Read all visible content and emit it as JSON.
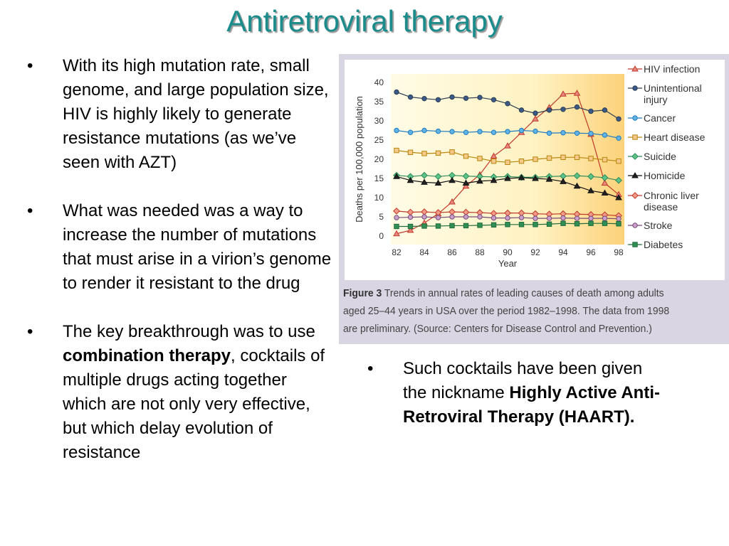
{
  "slide": {
    "title": "Antiretroviral therapy",
    "bullets": [
      {
        "parts": [
          {
            "text": "With its high mutation rate, small genome, and large population size, HIV is highly likely to generate resistance mutations (as we’ve seen with AZT)",
            "bold": false
          }
        ]
      },
      {
        "parts": [
          {
            "text": "What was needed was a way to increase the number of mutations that must arise in a virion’s genome to render it resistant to the drug",
            "bold": false
          }
        ]
      },
      {
        "parts": [
          {
            "text": "The key breakthrough was to use ",
            "bold": false
          },
          {
            "text": "combination therapy",
            "bold": true
          },
          {
            "text": ", cocktails of multiple drugs acting together which are not only very effective, but which delay evolution of resistance",
            "bold": false
          }
        ]
      }
    ],
    "right_bullets": [
      {
        "parts": [
          {
            "text": "Such cocktails have been given the nickname ",
            "bold": false
          },
          {
            "text": "Highly Active Anti-Retroviral Therapy (HAART).",
            "bold": true
          }
        ]
      }
    ],
    "bullet_symbol": "•"
  },
  "figure": {
    "caption_label": "Figure 3",
    "caption_text": " Trends in annual rates of leading causes of death among adults aged 25–44 years in USA over the period 1982–1998. The data from 1998 are preliminary. (Source: Centers for Disease Control and Prevention.)"
  },
  "chart_data": {
    "type": "line",
    "xlabel": "Year",
    "ylabel": "Deaths per 100,000 population",
    "xlim": [
      82,
      98
    ],
    "ylim": [
      0,
      40
    ],
    "xticks": [
      82,
      84,
      86,
      88,
      90,
      92,
      94,
      96,
      98
    ],
    "yticks": [
      0,
      5,
      10,
      15,
      20,
      25,
      30,
      35,
      40
    ],
    "x": [
      82,
      83,
      84,
      85,
      86,
      87,
      88,
      89,
      90,
      91,
      92,
      93,
      94,
      95,
      96,
      97,
      98
    ],
    "legend_position": "right",
    "background_gradient": {
      "from": "#fffbe6",
      "to": "#fcd27a"
    },
    "series": [
      {
        "name": "HIV infection",
        "color": "#c0392b",
        "fill": "#e8877e",
        "marker": "triangle",
        "values": [
          0.6,
          1.5,
          3.4,
          5.8,
          8.9,
          13.0,
          16.0,
          20.8,
          23.5,
          27.0,
          30.5,
          33.5,
          37.0,
          37.2,
          26.5,
          13.8,
          10.8
        ]
      },
      {
        "name": "Unintentional injury",
        "label_lines": [
          "Unintentional",
          "injury"
        ],
        "color": "#2c3e50",
        "fill": "#3b5a8a",
        "marker": "circle",
        "values": [
          37.5,
          36.2,
          35.8,
          35.5,
          36.2,
          35.9,
          36.1,
          35.5,
          34.5,
          32.8,
          32.0,
          32.8,
          33.0,
          33.6,
          32.5,
          32.8,
          30.5
        ]
      },
      {
        "name": "Cancer",
        "color": "#1f7bbf",
        "fill": "#5fb3e5",
        "marker": "circle",
        "values": [
          27.5,
          27.0,
          27.5,
          27.3,
          27.2,
          27.0,
          27.2,
          27.0,
          27.2,
          27.5,
          27.3,
          26.8,
          26.9,
          26.8,
          26.7,
          26.3,
          25.5
        ]
      },
      {
        "name": "Heart disease",
        "color": "#b8860b",
        "fill": "#f4c98a",
        "marker": "square",
        "values": [
          22.3,
          21.8,
          21.5,
          21.6,
          21.9,
          20.8,
          20.2,
          19.5,
          19.2,
          19.5,
          20.0,
          20.3,
          20.5,
          20.5,
          20.2,
          19.9,
          19.5
        ]
      },
      {
        "name": "Suicide",
        "color": "#2e8b57",
        "fill": "#5cc48a",
        "marker": "diamond",
        "values": [
          15.8,
          15.5,
          15.8,
          15.5,
          15.8,
          15.6,
          15.5,
          15.4,
          15.5,
          15.3,
          15.3,
          15.5,
          15.6,
          15.7,
          15.5,
          15.2,
          14.5
        ]
      },
      {
        "name": "Homicide",
        "color": "#111111",
        "fill": "#222222",
        "marker": "triangle",
        "values": [
          15.5,
          14.5,
          14.0,
          13.8,
          14.5,
          13.8,
          14.3,
          14.5,
          15.0,
          15.2,
          15.0,
          14.8,
          14.2,
          13.0,
          11.8,
          11.2,
          10.0
        ]
      },
      {
        "name": "Chronic liver disease",
        "label_lines": [
          "Chronic liver",
          "disease"
        ],
        "color": "#c0392b",
        "fill": "#f19a86",
        "marker": "diamond",
        "values": [
          6.5,
          6.2,
          6.3,
          6.1,
          6.3,
          6.2,
          6.1,
          5.9,
          6.0,
          6.0,
          5.8,
          5.7,
          5.8,
          5.7,
          5.6,
          5.5,
          5.3
        ]
      },
      {
        "name": "Stroke",
        "color": "#7a4a7a",
        "fill": "#c9a0c9",
        "marker": "circle",
        "values": [
          4.8,
          4.9,
          5.0,
          4.8,
          5.0,
          5.0,
          5.0,
          4.7,
          4.7,
          4.8,
          4.6,
          4.6,
          4.7,
          4.6,
          4.6,
          4.6,
          4.5
        ]
      },
      {
        "name": "Diabetes",
        "color": "#1e6b3a",
        "fill": "#2f8f55",
        "marker": "square",
        "values": [
          2.5,
          2.5,
          2.6,
          2.6,
          2.7,
          2.7,
          2.8,
          2.9,
          3.0,
          3.0,
          3.0,
          3.1,
          3.3,
          3.2,
          3.3,
          3.3,
          3.2
        ]
      }
    ]
  }
}
